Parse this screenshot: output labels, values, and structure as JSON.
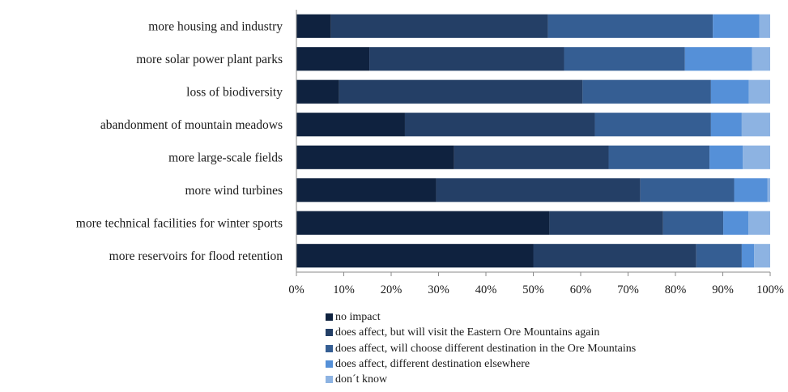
{
  "chart_data": {
    "type": "bar",
    "orientation": "horizontal",
    "stacked": "percent",
    "categories": [
      "more housing and industry",
      "more solar power plant parks",
      "loss of biodiversity",
      "abandonment of mountain meadows",
      "more large-scale fields",
      "more wind turbines",
      "more technical facilities for winter sports",
      "more reservoirs for flood retention"
    ],
    "series": [
      {
        "name": "no impact",
        "color": "#0f223f",
        "values": [
          7.3,
          15.4,
          9.0,
          22.9,
          33.3,
          29.5,
          53.4,
          50.0
        ]
      },
      {
        "name": "does affect, but will visit the Eastern Ore Mountains again",
        "color": "#243f66",
        "values": [
          45.8,
          41.1,
          51.4,
          40.1,
          32.6,
          43.1,
          24.0,
          34.4
        ]
      },
      {
        "name": "does affect, will choose different destination in the Ore Mountains",
        "color": "#355e93",
        "values": [
          34.8,
          25.5,
          27.1,
          24.5,
          21.3,
          19.8,
          12.7,
          9.6
        ]
      },
      {
        "name": "does affect, different destination elsewhere",
        "color": "#5590d8",
        "values": [
          9.8,
          14.2,
          8.0,
          6.5,
          7.0,
          7.0,
          5.3,
          2.6
        ]
      },
      {
        "name": "don´t know",
        "color": "#8db3e2",
        "values": [
          2.3,
          3.8,
          4.5,
          6.0,
          5.8,
          0.6,
          4.6,
          3.4
        ]
      }
    ],
    "x_ticks": [
      "0%",
      "10%",
      "20%",
      "30%",
      "40%",
      "50%",
      "60%",
      "70%",
      "80%",
      "90%",
      "100%"
    ],
    "xlim": [
      0,
      100
    ],
    "grid": false,
    "legend_position": "bottom"
  }
}
